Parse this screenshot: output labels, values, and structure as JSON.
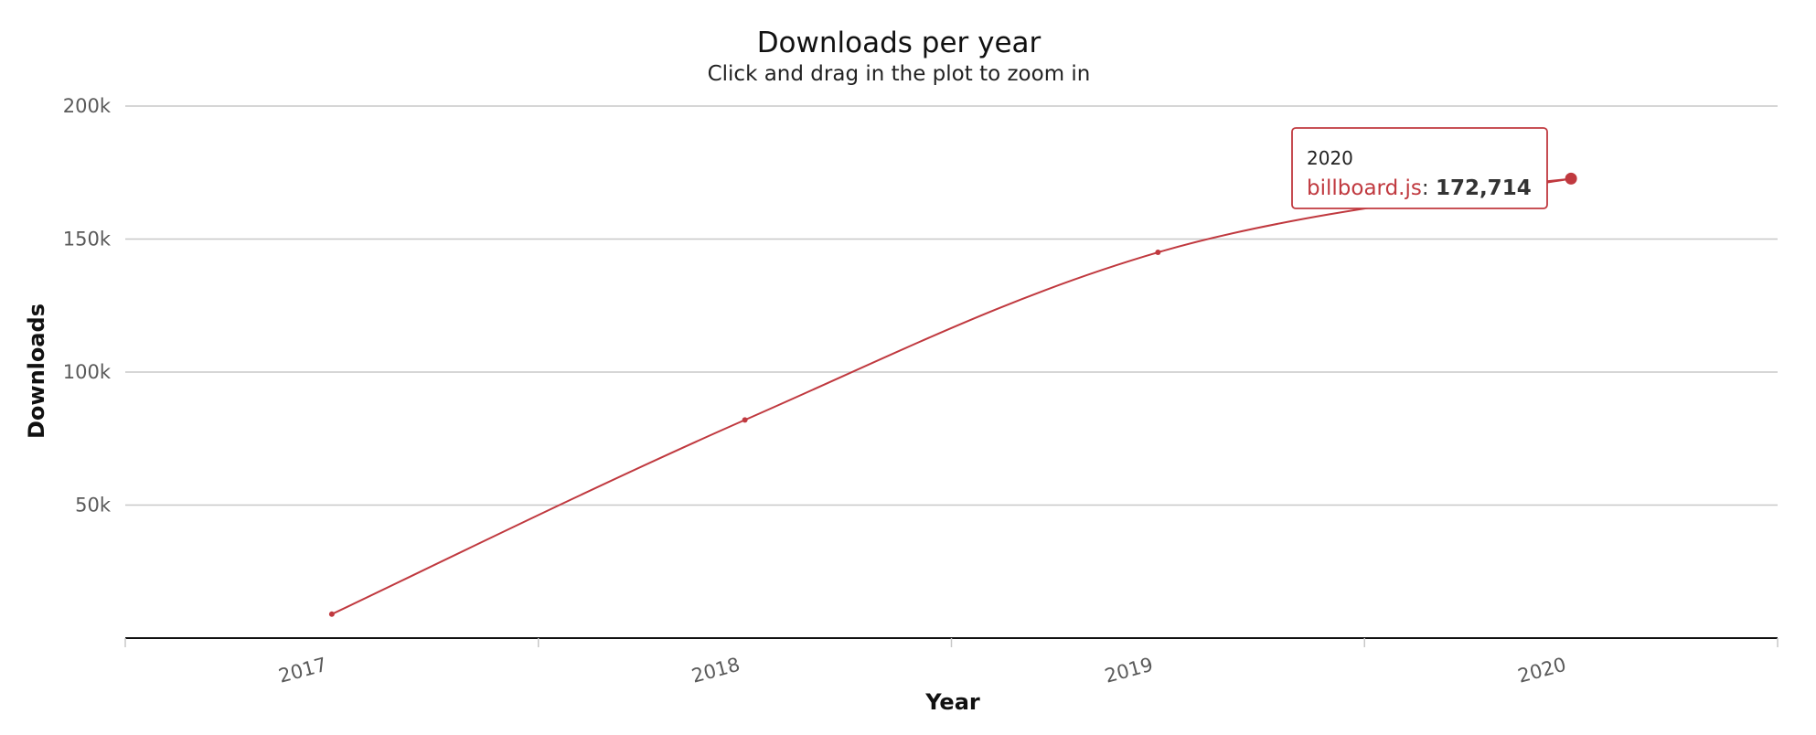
{
  "colors": {
    "series": "#c0393f",
    "grid": "#c8c8c8",
    "axis": "#111111"
  },
  "chart_data": {
    "type": "line",
    "title": "Downloads per year",
    "subtitle": "Click and drag in the plot to zoom in",
    "xlabel": "Year",
    "ylabel": "Downloads",
    "x": [
      "2017",
      "2018",
      "2019",
      "2020"
    ],
    "ylim": [
      0,
      200000
    ],
    "yticks": [
      {
        "value": 50000,
        "label": "50k"
      },
      {
        "value": 100000,
        "label": "100k"
      },
      {
        "value": 150000,
        "label": "150k"
      },
      {
        "value": 200000,
        "label": "200k"
      }
    ],
    "grid": true,
    "series": [
      {
        "name": "billboard.js",
        "values": [
          9000,
          82000,
          145000,
          172714
        ]
      }
    ],
    "tooltip": {
      "year": "2020",
      "series": "billboard.js",
      "separator": ": ",
      "value": "172,714",
      "point_index": 3
    }
  }
}
